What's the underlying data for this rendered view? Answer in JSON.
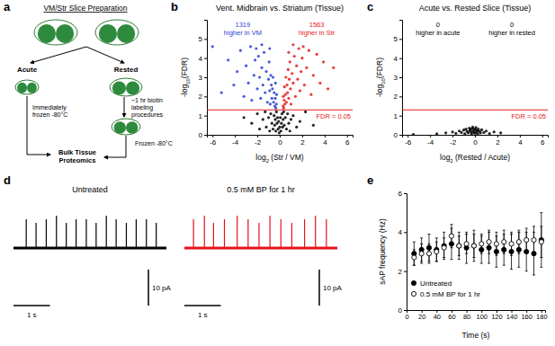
{
  "diagram": {
    "label": "a",
    "title": "VM/Str Slice Preparation",
    "branches": [
      "Acute",
      "Rested"
    ],
    "acute_step": [
      "Immediately",
      "frozen -80°C"
    ],
    "rested_step": [
      "~1 hr biotin",
      "labeling",
      "procedures"
    ],
    "rested_frozen": "Frozen -80°C",
    "final": [
      "Bulk Tissue",
      "Proteomics"
    ]
  },
  "chart_data": [
    {
      "type": "scatter",
      "label": "b",
      "title": "Vent. Midbrain vs. Striatum (Tissue)",
      "x_label": "log2 (Str / VM)",
      "y_label": "-log10(FDR)",
      "xlim": [
        -6.5,
        6.5
      ],
      "ylim": [
        0,
        6
      ],
      "xticks": [
        -6,
        -4,
        -2,
        0,
        2,
        4,
        6
      ],
      "yticks": [
        0,
        1,
        2,
        3,
        4,
        5
      ],
      "threshold": {
        "value": 1.3,
        "label": "FDR = 0.05",
        "color": "#e31a1c"
      },
      "annotations": [
        {
          "lines": [
            "1319",
            "higher in VM"
          ],
          "color": "#2a3fcf"
        },
        {
          "lines": [
            "1563",
            "higher in Str"
          ],
          "color": "#e31a1c"
        }
      ],
      "series": [
        {
          "color": "#2a3fcf",
          "x": [
            -6.0,
            -5.2,
            -4.6,
            -4.1,
            -3.8,
            -3.5,
            -3.2,
            -3.0,
            -2.8,
            -2.6,
            -2.5,
            -2.3,
            -2.2,
            -2.0,
            -1.9,
            -1.8,
            -1.7,
            -1.6,
            -1.5,
            -1.4,
            -1.3,
            -1.2,
            -1.1,
            -1.0,
            -0.95,
            -0.9,
            -0.85,
            -0.8,
            -0.75,
            -0.7,
            -0.65,
            -0.6,
            -0.55,
            -0.5,
            -0.45,
            -0.4,
            -0.38,
            -0.35,
            -0.3,
            -0.28,
            -1.6,
            -2.1,
            -0.9
          ],
          "values": [
            4.6,
            2.2,
            3.9,
            2.6,
            3.3,
            4.4,
            2.0,
            3.6,
            2.7,
            4.6,
            1.8,
            3.1,
            3.9,
            2.4,
            4.1,
            3.0,
            1.9,
            3.5,
            2.6,
            4.3,
            2.2,
            3.3,
            1.7,
            2.9,
            3.8,
            2.3,
            1.6,
            3.1,
            2.6,
            1.9,
            2.4,
            3.0,
            1.7,
            2.2,
            1.5,
            1.9,
            2.7,
            1.4,
            1.6,
            2.1,
            4.7,
            4.5,
            4.5
          ]
        },
        {
          "color": "#e31a1c",
          "x": [
            0.3,
            0.32,
            0.35,
            0.4,
            0.42,
            0.45,
            0.5,
            0.55,
            0.6,
            0.65,
            0.7,
            0.75,
            0.8,
            0.85,
            0.9,
            0.95,
            1.0,
            1.1,
            1.2,
            1.3,
            1.4,
            1.5,
            1.6,
            1.7,
            1.8,
            1.9,
            2.0,
            2.2,
            2.4,
            2.6,
            2.8,
            3.0,
            3.3,
            3.6,
            3.9,
            4.3,
            4.8,
            1.2,
            0.8,
            2.1
          ],
          "values": [
            1.5,
            2.0,
            1.4,
            1.8,
            2.5,
            1.6,
            2.1,
            3.0,
            1.7,
            2.6,
            2.2,
            3.4,
            1.9,
            2.9,
            3.8,
            2.4,
            1.6,
            3.2,
            2.7,
            4.1,
            2.0,
            3.6,
            2.9,
            4.5,
            2.3,
            3.3,
            4.0,
            2.6,
            3.5,
            4.4,
            2.1,
            3.1,
            4.2,
            2.7,
            3.8,
            2.4,
            3.5,
            4.7,
            4.3,
            4.6
          ]
        },
        {
          "color": "#000000",
          "x": [
            -2.5,
            -2.0,
            -1.8,
            -1.5,
            -1.3,
            -1.2,
            -1.0,
            -0.9,
            -0.8,
            -0.7,
            -0.6,
            -0.5,
            -0.45,
            -0.4,
            -0.35,
            -0.3,
            -0.25,
            -0.2,
            -0.15,
            -0.1,
            -0.05,
            0.0,
            0.05,
            0.1,
            0.15,
            0.2,
            0.25,
            0.3,
            0.35,
            0.4,
            0.5,
            0.6,
            0.7,
            0.8,
            0.9,
            1.0,
            1.2,
            1.5,
            1.8,
            2.3,
            3.0,
            -3.2
          ],
          "values": [
            0.6,
            1.1,
            0.3,
            0.8,
            1.2,
            0.4,
            0.9,
            0.2,
            1.1,
            0.6,
            0.3,
            1.0,
            0.5,
            0.8,
            0.2,
            1.2,
            0.6,
            0.9,
            0.3,
            0.7,
            0.1,
            0.4,
            0.9,
            0.2,
            0.6,
            1.1,
            0.4,
            0.8,
            1.2,
            0.5,
            0.9,
            0.3,
            1.1,
            0.6,
            0.2,
            0.8,
            1.0,
            0.4,
            0.7,
            1.2,
            0.5,
            0.9
          ]
        }
      ]
    },
    {
      "type": "scatter",
      "label": "c",
      "title": "Acute vs. Rested Slice (Tissue)",
      "x_label": "log2 (Rested / Acute)",
      "y_label": "-log10(FDR)",
      "xlim": [
        -6.5,
        6.5
      ],
      "ylim": [
        0,
        6
      ],
      "xticks": [
        -6,
        -4,
        -2,
        0,
        2,
        4,
        6
      ],
      "yticks": [
        0,
        1,
        2,
        3,
        4,
        5
      ],
      "threshold": {
        "value": 1.3,
        "label": "FDR = 0.05",
        "color": "#e31a1c"
      },
      "annotations": [
        {
          "lines": [
            "0",
            "higher in acute"
          ],
          "color": "#000000"
        },
        {
          "lines": [
            "0",
            "higher in rested"
          ],
          "color": "#000000"
        }
      ],
      "series": [
        {
          "color": "#000000",
          "x": [
            -3.4,
            -2.6,
            -2.0,
            -1.7,
            -1.4,
            -1.2,
            -1.0,
            -0.9,
            -0.8,
            -0.7,
            -0.6,
            -0.5,
            -0.45,
            -0.4,
            -0.35,
            -0.3,
            -0.25,
            -0.2,
            -0.15,
            -0.1,
            -0.05,
            0.0,
            0.05,
            0.1,
            0.15,
            0.2,
            0.25,
            0.3,
            0.4,
            0.5,
            0.6,
            0.8,
            1.0,
            1.3,
            1.7,
            2.3,
            -5.5
          ],
          "values": [
            0.05,
            0.1,
            0.15,
            0.08,
            0.2,
            0.12,
            0.25,
            0.05,
            0.3,
            0.18,
            0.1,
            0.35,
            0.22,
            0.28,
            0.15,
            0.05,
            0.32,
            0.4,
            0.2,
            0.12,
            0.3,
            0.08,
            0.25,
            0.38,
            0.15,
            0.22,
            0.05,
            0.3,
            0.18,
            0.1,
            0.26,
            0.12,
            0.2,
            0.07,
            0.15,
            0.1,
            0.02
          ]
        }
      ]
    },
    {
      "type": "trace",
      "label": "d",
      "title": "Untreated",
      "tick_labels": false,
      "xlim": [
        0,
        4.2
      ],
      "ylim": [
        -4,
        12
      ],
      "baseline": 0,
      "color": "#000000",
      "x": [
        0.35,
        0.62,
        0.9,
        1.18,
        1.45,
        1.72,
        2.0,
        2.27,
        2.55,
        2.82,
        3.1,
        3.37,
        3.65,
        3.92
      ],
      "values": [
        8,
        7,
        8,
        9,
        7,
        8,
        8,
        7,
        9,
        8,
        7,
        8,
        8,
        7
      ],
      "scale_bar": {
        "x": 1,
        "x_label": "1 s",
        "y": 10,
        "y_label": "10 pA"
      }
    },
    {
      "type": "trace",
      "title": "0.5 mM BP for 1 hr",
      "tick_labels": false,
      "xlim": [
        0,
        4.2
      ],
      "ylim": [
        -4,
        12
      ],
      "baseline": 0,
      "color": "#e8121b",
      "x": [
        0.25,
        0.55,
        0.8,
        1.1,
        1.45,
        1.75,
        2.05,
        2.35,
        2.65,
        2.95,
        3.3,
        3.6,
        3.9
      ],
      "values": [
        8,
        9,
        7,
        8,
        9,
        8,
        7,
        9,
        8,
        7,
        8,
        9,
        8
      ],
      "scale_bar": {
        "x": 1,
        "x_label": "1 s",
        "y": 10,
        "y_label": "10 pA"
      }
    },
    {
      "type": "scatter",
      "label": "e",
      "x_label": "Time (s)",
      "y_label": "sAP frequency (Hz)",
      "xlim": [
        0,
        185
      ],
      "ylim": [
        0,
        6
      ],
      "xticks": [
        0,
        20,
        40,
        60,
        80,
        100,
        120,
        140,
        160,
        180
      ],
      "yticks": [
        0,
        2,
        4,
        6
      ],
      "legend": "lower left",
      "series": [
        {
          "name": "Untreated",
          "color": "#000000",
          "marker": "circle",
          "x": [
            10,
            20,
            30,
            40,
            50,
            60,
            70,
            80,
            90,
            100,
            110,
            120,
            130,
            140,
            150,
            160,
            170,
            180
          ],
          "values": [
            2.9,
            3.1,
            3.2,
            3.1,
            3.3,
            3.4,
            3.3,
            3.2,
            3.3,
            3.1,
            3.2,
            3.0,
            3.1,
            3.0,
            3.1,
            3.0,
            2.9,
            3.6
          ],
          "error": [
            0.6,
            0.6,
            0.7,
            0.6,
            0.7,
            0.8,
            0.7,
            0.8,
            0.8,
            0.7,
            0.8,
            0.8,
            0.8,
            0.9,
            0.9,
            1.0,
            1.1,
            1.4
          ]
        },
        {
          "name": "0.5 mM BP for 1 hr",
          "color": "#000000",
          "marker": "open-circle",
          "x": [
            10,
            20,
            30,
            40,
            50,
            60,
            70,
            80,
            90,
            100,
            110,
            120,
            130,
            140,
            150,
            160,
            170,
            180
          ],
          "values": [
            2.7,
            2.9,
            2.9,
            3.0,
            3.2,
            3.8,
            3.3,
            3.4,
            3.3,
            3.4,
            3.5,
            3.4,
            3.5,
            3.4,
            3.5,
            3.6,
            3.6,
            3.5
          ],
          "error": [
            0.4,
            0.5,
            0.5,
            0.5,
            0.5,
            0.6,
            0.5,
            0.5,
            0.6,
            0.5,
            0.6,
            0.6,
            0.6,
            0.6,
            0.6,
            0.6,
            0.7,
            0.8
          ]
        }
      ]
    }
  ]
}
